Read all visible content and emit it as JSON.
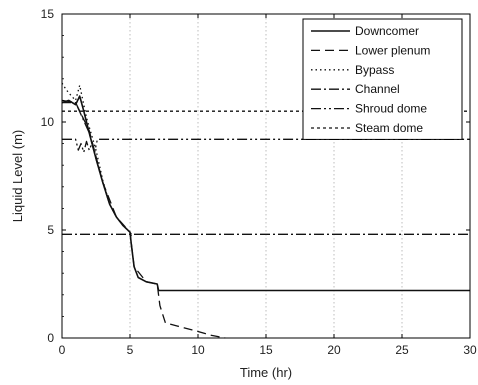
{
  "chart_data": {
    "type": "line",
    "title": "",
    "xlabel": "Time (hr)",
    "ylabel": "Liquid Level (m)",
    "xlim": [
      0,
      30
    ],
    "ylim": [
      0,
      15
    ],
    "xticks": [
      "0",
      "5",
      "10",
      "15",
      "20",
      "25",
      "30"
    ],
    "yticks": [
      "0",
      "5",
      "10",
      "15"
    ],
    "grid": "vertical dotted",
    "legend_position": "top-right",
    "series": [
      {
        "name": "Downcomer",
        "dash": "solid",
        "x": [
          0,
          0.5,
          1.0,
          1.3,
          1.6,
          2.0,
          2.5,
          3.0,
          3.5,
          4.0,
          4.5,
          5.0,
          5.1,
          5.3,
          5.6,
          6.2,
          7.0,
          7.1,
          7.3,
          10,
          15,
          20,
          25,
          30
        ],
        "y": [
          10.9,
          11.0,
          10.8,
          11.2,
          10.5,
          9.5,
          8.3,
          7.2,
          6.2,
          5.6,
          5.2,
          4.9,
          4.3,
          3.3,
          2.8,
          2.6,
          2.5,
          2.2,
          2.2,
          2.2,
          2.2,
          2.2,
          2.2,
          2.2
        ]
      },
      {
        "name": "Lower plenum",
        "dash": "dashed",
        "x": [
          0,
          1.0,
          2.0,
          3.0,
          4.0,
          5.0,
          5.3,
          6.2,
          7.0,
          7.2,
          7.6,
          8.5,
          10,
          11,
          12
        ],
        "y": [
          10.9,
          10.9,
          9.6,
          7.2,
          5.6,
          4.9,
          3.3,
          2.6,
          2.5,
          1.5,
          0.7,
          0.55,
          0.3,
          0.12,
          0.0
        ]
      },
      {
        "name": "Bypass",
        "dash": "dotted",
        "x": [
          0,
          0.3,
          0.7,
          1.0,
          1.3,
          1.8,
          2.5,
          3.0,
          3.5,
          4.0,
          4.5,
          5.0,
          5.1
        ],
        "y": [
          11.8,
          11.5,
          11.2,
          11.0,
          11.7,
          10.2,
          8.7,
          7.3,
          6.2,
          5.6,
          5.2,
          4.9,
          4.7
        ]
      },
      {
        "name": "Channel",
        "dash": "dash-dot",
        "x": [
          0,
          1.0,
          1.5,
          2.0,
          2.5,
          3.0,
          3.5,
          4.0,
          4.5,
          5.0,
          5.1
        ],
        "y": [
          11.0,
          10.9,
          10.2,
          9.5,
          8.3,
          7.2,
          6.2,
          5.6,
          5.2,
          4.9,
          4.8
        ]
      },
      {
        "name": "Shroud dome",
        "dash": "dash-dot-dot",
        "x": [
          0,
          1.0,
          1.2,
          1.4,
          1.6,
          1.8,
          2.0,
          2.2,
          2.4,
          2.6,
          2.7,
          30
        ],
        "y": [
          9.2,
          9.2,
          8.7,
          9.0,
          8.6,
          9.1,
          8.7,
          9.0,
          8.6,
          9.2,
          9.2,
          9.2
        ]
      },
      {
        "name": "Steam dome",
        "dash": "short-dash",
        "x": [
          0,
          30
        ],
        "y": [
          10.5,
          10.5
        ]
      },
      {
        "name": "",
        "dash": "dash-dot",
        "x": [
          0,
          30
        ],
        "y": [
          4.8,
          4.8
        ]
      }
    ]
  }
}
